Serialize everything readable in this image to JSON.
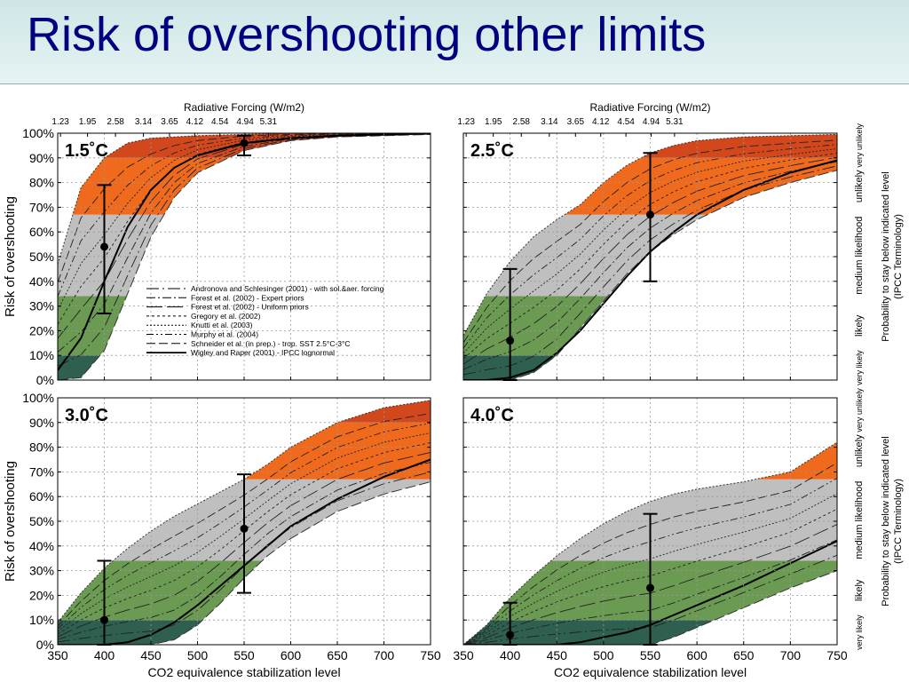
{
  "slide": {
    "title": "Risk of overshooting other limits"
  },
  "figure": {
    "rf_axis_label": "Radiative Forcing (W/m2)",
    "rf_ticks": [
      "1.23",
      "1.95",
      "2.58",
      "3.14",
      "3.65",
      "4.12",
      "4.54",
      "4.94",
      "5.31"
    ],
    "y_axis_label": "Risk of overshooting",
    "y_ticks": [
      "0%",
      "10%",
      "20%",
      "30%",
      "40%",
      "50%",
      "60%",
      "70%",
      "80%",
      "90%",
      "100%"
    ],
    "x_axis_label": "CO2 equivalence stabilization level",
    "x_ticks": [
      "350",
      "400",
      "450",
      "500",
      "550",
      "600",
      "650",
      "700",
      "750"
    ],
    "right_label_line1": "Probability to stay below indicated level",
    "right_label_line2": "(IPCC Terminology)",
    "likelihood_labels": [
      "very unlikely",
      "unlikely",
      "medium likelihood",
      "likely",
      "very likely"
    ],
    "legend": [
      "Andronova and Schlesinger (2001) - with sol.&aer. forcing",
      "Forest et al. (2002) - Expert priors",
      "Forest et al. (2002) - Uniform priors",
      "Gregory et al. (2002)",
      "Knutti et al. (2003)",
      "Murphy et al. (2004)",
      "Schneider et al. (in prep.) - trop. SST 2.5°C-3°C",
      "Wigley and Raper (2001) - IPCC lognormal"
    ],
    "colors": {
      "dark_green": "#2f5f4f",
      "green": "#6b9a52",
      "gray": "#bfbfbf",
      "orange": "#f06a1e",
      "dark_orange": "#d2471c"
    }
  },
  "chart_data": [
    {
      "type": "line",
      "panel_label": "1.5˚C",
      "xlim": [
        350,
        750
      ],
      "ylim": [
        0,
        100
      ],
      "envelope_low": [
        [
          350,
          0
        ],
        [
          375,
          1
        ],
        [
          400,
          12
        ],
        [
          425,
          35
        ],
        [
          450,
          58
        ],
        [
          475,
          74
        ],
        [
          500,
          84
        ],
        [
          550,
          93
        ],
        [
          600,
          97
        ],
        [
          650,
          98.5
        ],
        [
          700,
          99
        ],
        [
          750,
          99.5
        ]
      ],
      "envelope_high": [
        [
          350,
          47
        ],
        [
          375,
          78
        ],
        [
          400,
          90
        ],
        [
          425,
          96
        ],
        [
          450,
          98
        ],
        [
          500,
          99
        ],
        [
          550,
          99.5
        ],
        [
          600,
          100
        ],
        [
          750,
          100
        ]
      ],
      "wigley_curve": [
        [
          350,
          4
        ],
        [
          375,
          17
        ],
        [
          400,
          40
        ],
        [
          425,
          62
        ],
        [
          450,
          77
        ],
        [
          475,
          86
        ],
        [
          500,
          91
        ],
        [
          550,
          96
        ],
        [
          600,
          98
        ],
        [
          650,
          99
        ],
        [
          700,
          99.5
        ],
        [
          750,
          100
        ]
      ],
      "errorbars": [
        {
          "x": 400,
          "y": 54,
          "low": 27,
          "high": 79
        },
        {
          "x": 550,
          "y": 96,
          "low": 91,
          "high": 99
        }
      ]
    },
    {
      "type": "line",
      "panel_label": "2.5˚C",
      "xlim": [
        350,
        750
      ],
      "ylim": [
        0,
        100
      ],
      "envelope_low": [
        [
          350,
          0
        ],
        [
          375,
          0
        ],
        [
          400,
          0
        ],
        [
          425,
          3
        ],
        [
          450,
          10
        ],
        [
          475,
          21
        ],
        [
          500,
          32
        ],
        [
          525,
          43
        ],
        [
          550,
          52
        ],
        [
          575,
          59
        ],
        [
          600,
          65
        ],
        [
          650,
          74
        ],
        [
          700,
          80
        ],
        [
          750,
          85
        ]
      ],
      "envelope_high": [
        [
          350,
          18
        ],
        [
          375,
          35
        ],
        [
          400,
          48
        ],
        [
          425,
          58
        ],
        [
          450,
          65
        ],
        [
          475,
          71
        ],
        [
          500,
          80
        ],
        [
          525,
          87
        ],
        [
          550,
          92
        ],
        [
          575,
          95
        ],
        [
          600,
          97
        ],
        [
          650,
          98.5
        ],
        [
          700,
          99
        ],
        [
          750,
          99.5
        ]
      ],
      "wigley_curve": [
        [
          350,
          0
        ],
        [
          375,
          0
        ],
        [
          400,
          1
        ],
        [
          425,
          4
        ],
        [
          450,
          11
        ],
        [
          475,
          20
        ],
        [
          500,
          31
        ],
        [
          525,
          42
        ],
        [
          550,
          52
        ],
        [
          575,
          60
        ],
        [
          600,
          67
        ],
        [
          650,
          77
        ],
        [
          700,
          84
        ],
        [
          750,
          89
        ]
      ],
      "errorbars": [
        {
          "x": 400,
          "y": 16,
          "low": 0,
          "high": 45
        },
        {
          "x": 550,
          "y": 67,
          "low": 40,
          "high": 92
        }
      ]
    },
    {
      "type": "line",
      "panel_label": "3.0˚C",
      "xlim": [
        350,
        750
      ],
      "ylim": [
        0,
        100
      ],
      "envelope_low": [
        [
          350,
          0
        ],
        [
          375,
          0
        ],
        [
          400,
          0
        ],
        [
          425,
          0
        ],
        [
          450,
          0
        ],
        [
          475,
          2
        ],
        [
          500,
          8
        ],
        [
          525,
          17
        ],
        [
          550,
          27
        ],
        [
          575,
          36
        ],
        [
          600,
          43
        ],
        [
          650,
          54
        ],
        [
          700,
          61
        ],
        [
          750,
          66
        ]
      ],
      "envelope_high": [
        [
          350,
          9
        ],
        [
          375,
          21
        ],
        [
          400,
          31
        ],
        [
          425,
          39
        ],
        [
          450,
          46
        ],
        [
          475,
          52
        ],
        [
          500,
          57
        ],
        [
          525,
          62
        ],
        [
          550,
          67
        ],
        [
          575,
          73
        ],
        [
          600,
          80
        ],
        [
          650,
          90
        ],
        [
          700,
          96
        ],
        [
          750,
          99
        ]
      ],
      "wigley_curve": [
        [
          350,
          0
        ],
        [
          375,
          0
        ],
        [
          400,
          0
        ],
        [
          425,
          1
        ],
        [
          450,
          4
        ],
        [
          475,
          9
        ],
        [
          500,
          16
        ],
        [
          525,
          24
        ],
        [
          550,
          32
        ],
        [
          575,
          40
        ],
        [
          600,
          48
        ],
        [
          650,
          59
        ],
        [
          700,
          68
        ],
        [
          750,
          75
        ]
      ],
      "errorbars": [
        {
          "x": 400,
          "y": 10,
          "low": 0,
          "high": 34
        },
        {
          "x": 550,
          "y": 47,
          "low": 21,
          "high": 69
        }
      ]
    },
    {
      "type": "line",
      "panel_label": "4.0˚C",
      "xlim": [
        350,
        750
      ],
      "ylim": [
        0,
        100
      ],
      "envelope_low": [
        [
          350,
          0
        ],
        [
          375,
          0
        ],
        [
          400,
          0
        ],
        [
          425,
          0
        ],
        [
          450,
          0
        ],
        [
          475,
          0
        ],
        [
          500,
          0
        ],
        [
          525,
          0
        ],
        [
          550,
          0
        ],
        [
          575,
          3
        ],
        [
          600,
          7
        ],
        [
          650,
          15
        ],
        [
          700,
          23
        ],
        [
          750,
          30
        ]
      ],
      "envelope_high": [
        [
          350,
          0
        ],
        [
          375,
          8
        ],
        [
          400,
          19
        ],
        [
          425,
          28
        ],
        [
          450,
          36
        ],
        [
          475,
          43
        ],
        [
          500,
          49
        ],
        [
          525,
          54
        ],
        [
          550,
          58
        ],
        [
          575,
          61
        ],
        [
          600,
          63
        ],
        [
          650,
          66
        ],
        [
          700,
          70
        ],
        [
          750,
          82
        ]
      ],
      "wigley_curve": [
        [
          350,
          0
        ],
        [
          375,
          0
        ],
        [
          400,
          0
        ],
        [
          425,
          0
        ],
        [
          450,
          0
        ],
        [
          475,
          1
        ],
        [
          500,
          3
        ],
        [
          525,
          5
        ],
        [
          550,
          8
        ],
        [
          575,
          12
        ],
        [
          600,
          16
        ],
        [
          650,
          24
        ],
        [
          700,
          33
        ],
        [
          750,
          42
        ]
      ],
      "errorbars": [
        {
          "x": 400,
          "y": 4,
          "low": 0,
          "high": 17
        },
        {
          "x": 550,
          "y": 23,
          "low": 0,
          "high": 53
        }
      ]
    }
  ]
}
